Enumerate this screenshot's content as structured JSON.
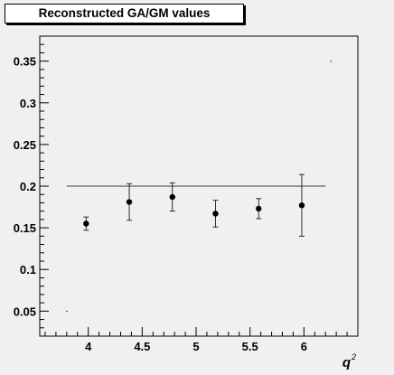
{
  "colors": {
    "background": "#f0f0f0",
    "frame": "#000000",
    "marker": "#000000",
    "reference_line": "#000000"
  },
  "chart_data": {
    "type": "scatter",
    "title": "Reconstructed GA/GM values",
    "xlabel": "q",
    "xlabel_superscript": "2",
    "ylabel": "",
    "xlim": [
      3.55,
      6.5
    ],
    "ylim": [
      0.02,
      0.38
    ],
    "x_ticks": [
      4,
      4.5,
      5,
      5.5,
      6
    ],
    "x_tick_labels": [
      "4",
      "4.5",
      "5",
      "5.5",
      "6"
    ],
    "y_ticks": [
      0.05,
      0.1,
      0.15,
      0.2,
      0.25,
      0.3,
      0.35
    ],
    "y_tick_labels": [
      "0.05",
      "0.1",
      "0.15",
      "0.2",
      "0.25",
      "0.3",
      "0.35"
    ],
    "grid": false,
    "legend": "none",
    "series": [
      {
        "x": [
          3.98,
          4.38,
          4.78,
          5.18,
          5.58,
          5.98
        ],
        "y": [
          0.155,
          0.181,
          0.187,
          0.167,
          0.173,
          0.177
        ],
        "y_err": [
          0.008,
          0.022,
          0.017,
          0.016,
          0.012,
          0.037
        ]
      }
    ],
    "reference_line": {
      "y": 0.2,
      "x_from": 3.8,
      "x_to": 6.2
    },
    "stray_points": [
      {
        "x": 3.8,
        "y": 0.05
      },
      {
        "x": 6.25,
        "y": 0.35
      }
    ]
  }
}
